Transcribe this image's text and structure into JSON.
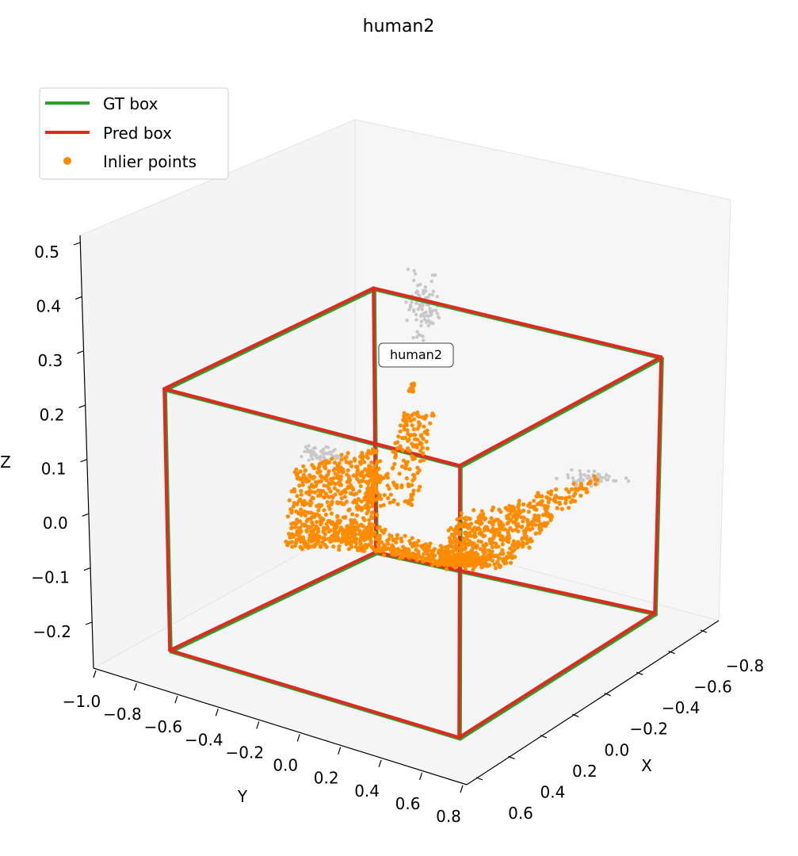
{
  "chart_data": {
    "type": "scatter",
    "projection": "3d",
    "title": "human2",
    "xlabel": "X",
    "ylabel": "Y",
    "zlabel": "Z",
    "x_ticks": [
      "−0.8",
      "−0.6",
      "−0.4",
      "−0.2",
      "0.0",
      "0.2",
      "0.4",
      "0.6"
    ],
    "y_ticks": [
      "−1.0",
      "−0.8",
      "−0.6",
      "−0.4",
      "−0.2",
      "0.0",
      "0.2",
      "0.4",
      "0.6",
      "0.8"
    ],
    "z_ticks": [
      "0.5",
      "0.4",
      "0.3",
      "0.2",
      "0.1",
      "0.0",
      "−0.1",
      "−0.2"
    ],
    "legend": {
      "placement": "top-left",
      "entries": [
        {
          "label": "GT box",
          "color": "#2ca02c",
          "marker": "line"
        },
        {
          "label": "Pred box",
          "color": "#e0291f",
          "marker": "line"
        },
        {
          "label": "Inlier points",
          "color": "#ff8c00",
          "marker": "dot"
        }
      ]
    },
    "annotation": "human2",
    "series": [
      {
        "name": "GT box",
        "kind": "box-edges",
        "color": "#2ca02c"
      },
      {
        "name": "Pred box",
        "kind": "box-edges",
        "color": "#e0291f"
      },
      {
        "name": "Inlier points",
        "kind": "scatter",
        "color": "#ff8c00"
      },
      {
        "kind": "scatter",
        "color": "#c8c8c8"
      }
    ],
    "grid": false
  }
}
